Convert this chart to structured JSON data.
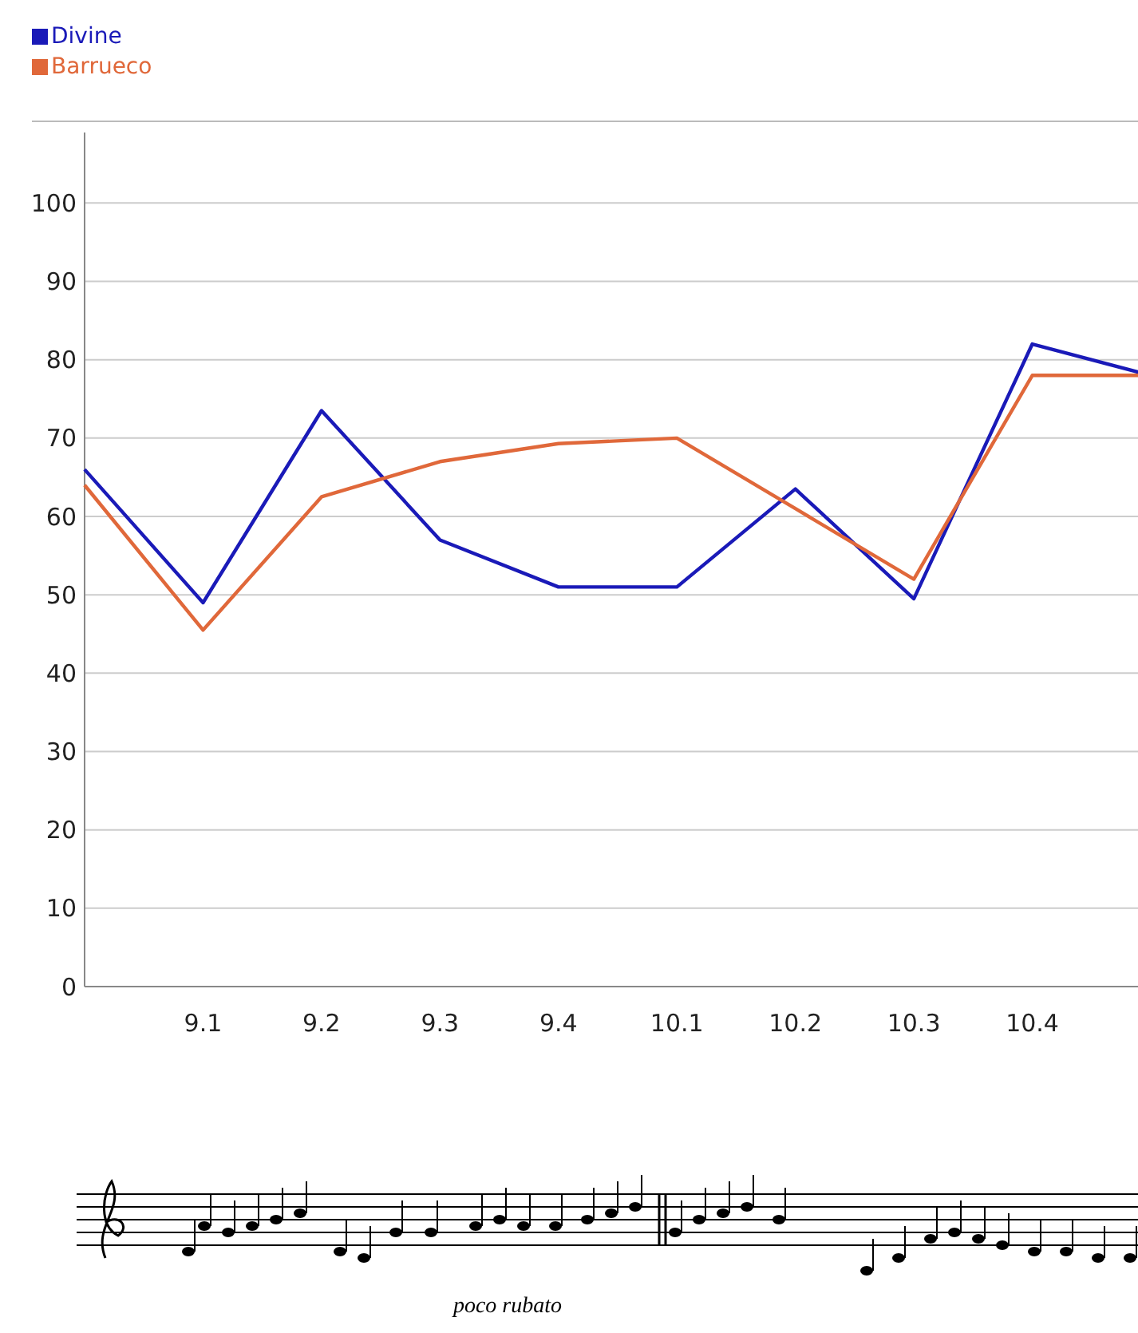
{
  "chart_data": {
    "type": "line",
    "categories": [
      null,
      "9.1",
      "9.2",
      "9.3",
      "9.4",
      "10.1",
      "10.2",
      "10.3",
      "10.4",
      null
    ],
    "series": [
      {
        "name": "Divine",
        "color": "#1a1ab8",
        "values": [
          66,
          49,
          73.5,
          57,
          51,
          51,
          63.5,
          49.5,
          82,
          78
        ]
      },
      {
        "name": "Barrueco",
        "color": "#e0683a",
        "values": [
          64,
          45.5,
          62.5,
          67,
          69.3,
          70,
          61,
          52,
          78,
          78
        ]
      }
    ],
    "ylim": [
      0,
      109
    ],
    "yticks": [
      0,
      10,
      20,
      30,
      40,
      50,
      60,
      70,
      80,
      90,
      100
    ],
    "grid": "y",
    "legend": "top left",
    "marker": "none",
    "line_style": "solid",
    "annotations": [
      "poco rubato"
    ]
  }
}
